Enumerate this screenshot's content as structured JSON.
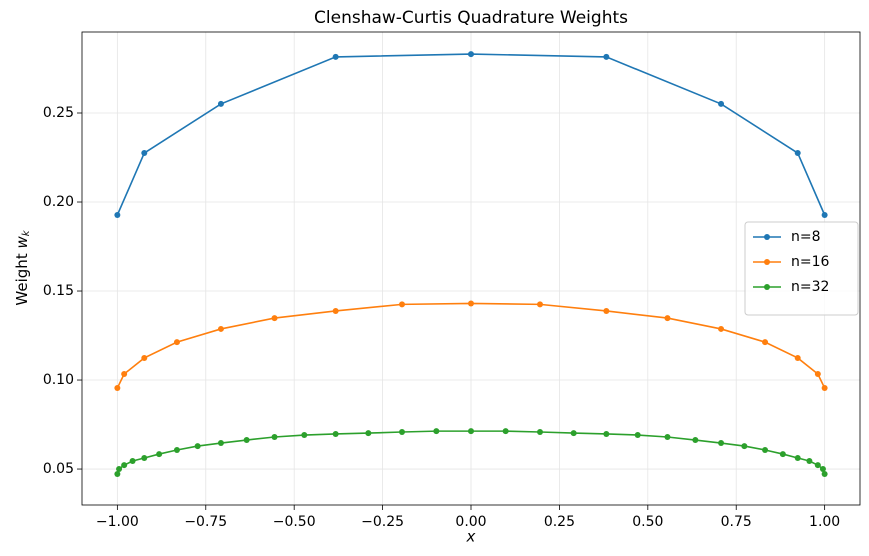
{
  "chart_data": {
    "type": "line",
    "title": "Clenshaw-Curtis Quadrature Weights",
    "xlabel": "x",
    "ylabel": {
      "text": "Weight",
      "var": "w",
      "sub": "k"
    },
    "xlim": [
      -1.1,
      1.1
    ],
    "ylim": [
      0.0298,
      0.2955
    ],
    "xticks": [
      {
        "value": -1,
        "label": "−1.00"
      },
      {
        "value": -0.75,
        "label": "−0.75"
      },
      {
        "value": -0.5,
        "label": "−0.50"
      },
      {
        "value": -0.25,
        "label": "−0.25"
      },
      {
        "value": 0,
        "label": "0.00"
      },
      {
        "value": 0.25,
        "label": "0.25"
      },
      {
        "value": 0.5,
        "label": "0.50"
      },
      {
        "value": 0.75,
        "label": "0.75"
      },
      {
        "value": 1,
        "label": "1.00"
      }
    ],
    "yticks": [
      {
        "value": 0.05,
        "label": "0.05"
      },
      {
        "value": 0.1,
        "label": "0.10"
      },
      {
        "value": 0.15,
        "label": "0.15"
      },
      {
        "value": 0.2,
        "label": "0.20"
      },
      {
        "value": 0.25,
        "label": "0.25"
      }
    ],
    "grid": true,
    "legend": "center right",
    "series": [
      {
        "name": "n=8",
        "color": "#1f77b4",
        "x": [
          -1,
          -0.9239,
          -0.7071,
          -0.3827,
          0,
          0.3827,
          0.7071,
          0.9239,
          1
        ],
        "values": [
          0.1927,
          0.2275,
          0.2551,
          0.2815,
          0.2831,
          0.2815,
          0.2551,
          0.2275,
          0.1927
        ]
      },
      {
        "name": "n=16",
        "color": "#ff7f0e",
        "x": [
          -1,
          -0.9808,
          -0.9239,
          -0.8315,
          -0.7071,
          -0.5556,
          -0.3827,
          -0.1951,
          0,
          0.1951,
          0.3827,
          0.5556,
          0.7071,
          0.8315,
          0.9239,
          0.9808,
          1
        ],
        "values": [
          0.0955,
          0.1034,
          0.1124,
          0.1213,
          0.1287,
          0.1348,
          0.1388,
          0.1425,
          0.143,
          0.1425,
          0.1388,
          0.1348,
          0.1287,
          0.1213,
          0.1124,
          0.1034,
          0.0955
        ]
      },
      {
        "name": "n=32",
        "color": "#2ca02c",
        "x": [
          -1,
          -0.9952,
          -0.9808,
          -0.9569,
          -0.9239,
          -0.8819,
          -0.8315,
          -0.773,
          -0.7071,
          -0.6344,
          -0.5556,
          -0.4714,
          -0.3827,
          -0.2903,
          -0.1951,
          -0.098,
          0,
          0.098,
          0.1951,
          0.2903,
          0.3827,
          0.4714,
          0.5556,
          0.6344,
          0.7071,
          0.773,
          0.8315,
          0.8819,
          0.9239,
          0.9569,
          0.9808,
          0.9952,
          1
        ],
        "values": [
          0.0472,
          0.05,
          0.0522,
          0.0545,
          0.0562,
          0.0584,
          0.0607,
          0.0629,
          0.0646,
          0.0663,
          0.068,
          0.0691,
          0.0697,
          0.0702,
          0.0708,
          0.0713,
          0.0713,
          0.0713,
          0.0708,
          0.0702,
          0.0697,
          0.0691,
          0.068,
          0.0663,
          0.0646,
          0.0629,
          0.0607,
          0.0584,
          0.0562,
          0.0545,
          0.0522,
          0.05,
          0.0472
        ]
      }
    ]
  }
}
